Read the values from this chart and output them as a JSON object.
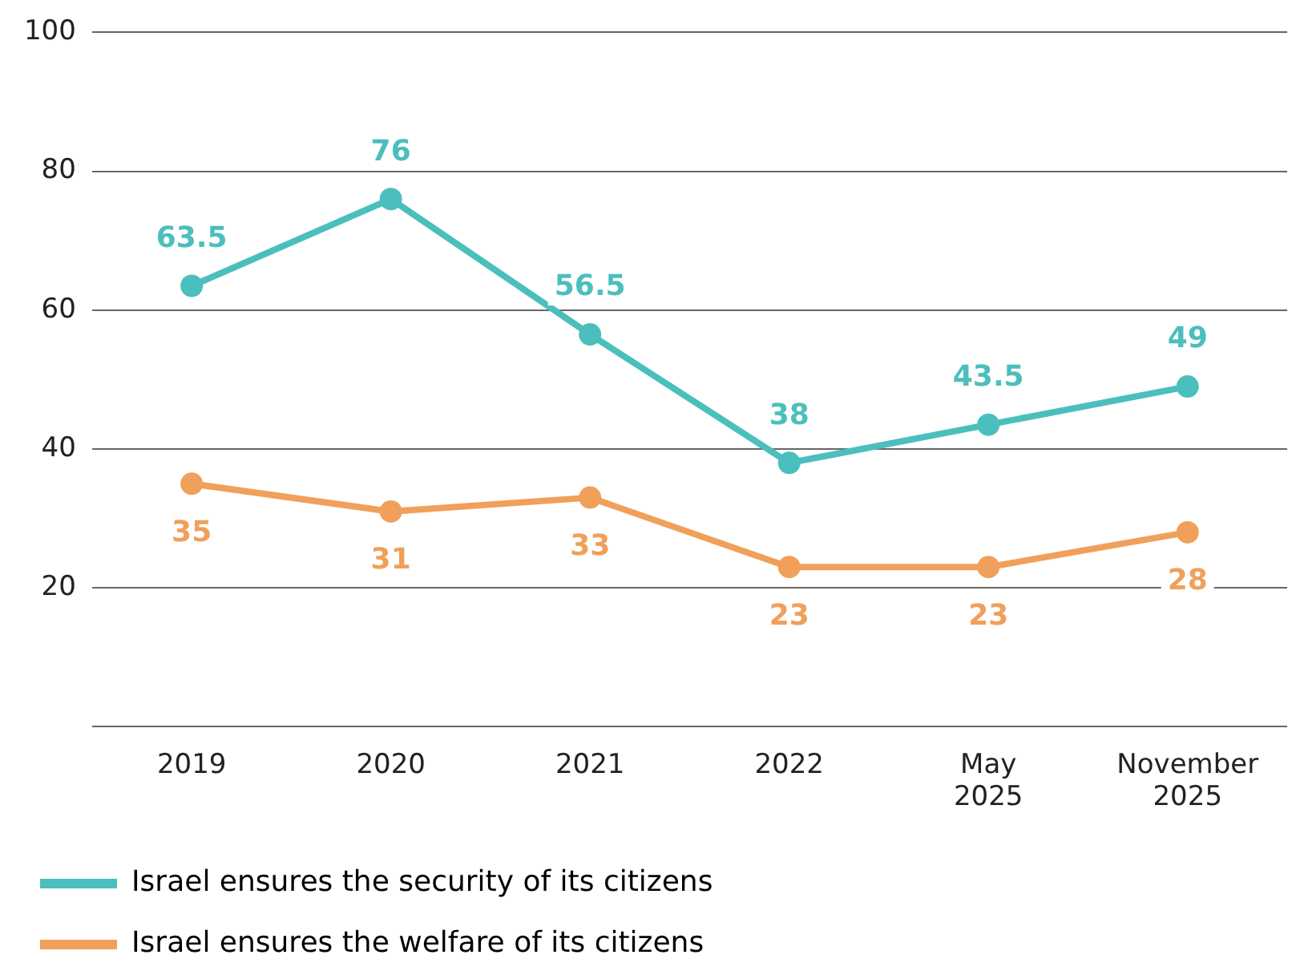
{
  "chart_data": {
    "type": "line",
    "categories": [
      "2019",
      "2020",
      "2021",
      "2022",
      "May 2025",
      "November 2025"
    ],
    "series": [
      {
        "name": "Israel ensures the security of its citizens",
        "color": "#4bbfbd",
        "values": [
          63.5,
          76,
          56.5,
          38,
          43.5,
          49
        ]
      },
      {
        "name": "Israel ensures the welfare of its citizens",
        "color": "#f0a05a",
        "values": [
          35,
          31,
          33,
          23,
          23,
          28
        ]
      }
    ],
    "ylim": [
      0,
      100
    ],
    "yticks": [
      {
        "value": 0,
        "label": null
      },
      20,
      40,
      60,
      80,
      100
    ],
    "grid": "y",
    "legend": "bottom",
    "marker": "circle",
    "line_style": "solid",
    "data_labels": true
  }
}
